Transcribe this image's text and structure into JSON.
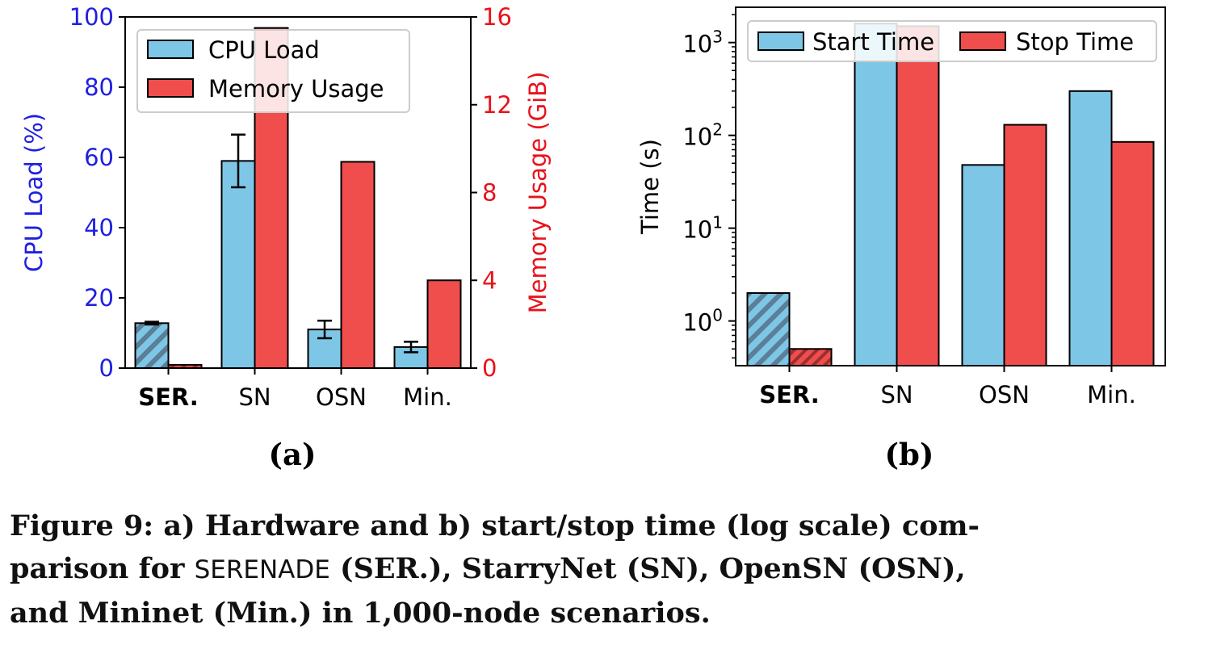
{
  "colors": {
    "cpu": "#7ec6e6",
    "memory": "#f04d4d",
    "cpu_axis": "#1f1fe0",
    "memory_axis": "#e8121a",
    "axis": "#000000",
    "ser_cpu_hatch": "#5a7f96",
    "ser_mem_hatch": "#9b2f2f"
  },
  "chart_data": [
    {
      "type": "bar",
      "panel_label": "(a)",
      "categories": [
        "SER.",
        "SN",
        "OSN",
        "Min."
      ],
      "bold_categories": [
        "SER."
      ],
      "y_left": {
        "label": "CPU Load (%)",
        "lim": [
          0,
          100
        ],
        "ticks": [
          0,
          20,
          40,
          60,
          80,
          100
        ]
      },
      "y_right": {
        "label": "Memory Usage (GiB)",
        "lim": [
          0,
          16
        ],
        "ticks": [
          0,
          4,
          8,
          12,
          16
        ]
      },
      "series": [
        {
          "name": "CPU Load",
          "axis": "left",
          "values": [
            12.8,
            59,
            11,
            6
          ],
          "error": [
            0.4,
            7.5,
            2.5,
            1.5
          ]
        },
        {
          "name": "Memory Usage",
          "axis": "right",
          "values": [
            0.15,
            15.5,
            9.4,
            4.0
          ]
        }
      ],
      "hatched_category": "SER.",
      "legend_position": "upper-left",
      "grid": false
    },
    {
      "type": "bar",
      "panel_label": "(b)",
      "categories": [
        "SER.",
        "SN",
        "OSN",
        "Min."
      ],
      "bold_categories": [
        "SER."
      ],
      "ylabel": "Time (s)",
      "yscale": "log",
      "ylim": [
        0.33,
        2400
      ],
      "yticks": [
        {
          "base": "10",
          "exp": "0",
          "value": 1
        },
        {
          "base": "10",
          "exp": "1",
          "value": 10
        },
        {
          "base": "10",
          "exp": "2",
          "value": 100
        },
        {
          "base": "10",
          "exp": "3",
          "value": 1000
        }
      ],
      "series": [
        {
          "name": "Start Time",
          "values": [
            2,
            1600,
            48,
            300
          ]
        },
        {
          "name": "Stop Time",
          "values": [
            0.5,
            1500,
            130,
            85
          ]
        }
      ],
      "hatched_category": "SER.",
      "legend_position": "top",
      "grid": false
    }
  ],
  "caption": {
    "prefix": "Figure 9: a) Hardware and b) start/stop time (log scale) com-",
    "line2_start": "parison for ",
    "system": "SERENADE",
    "line2_end": " (SER.), StarryNet (SN), OpenSN (OSN),",
    "line3": "and Mininet (Min.) in 1,000-node scenarios."
  }
}
